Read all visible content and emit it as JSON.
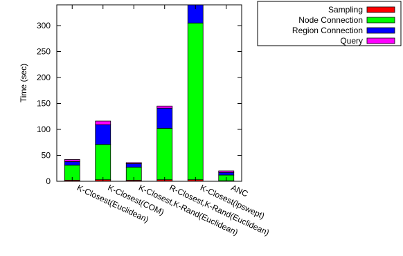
{
  "chart_data": {
    "type": "bar",
    "stacked": true,
    "title": "",
    "xlabel": "",
    "ylabel": "Time (sec)",
    "ylim": [
      0,
      340
    ],
    "yticks": [
      0,
      50,
      100,
      150,
      200,
      250,
      300
    ],
    "grid": false,
    "legend_position": "top-right, outside plot",
    "categories": [
      "K-Closest(Euclidean)",
      "K-Closest(COM)",
      "K-Closest,K-Rand(Euclidean)",
      "R-Closest,K-Rand(Euclidean)",
      "K-Closest(lpswept)",
      "ANC"
    ],
    "series": [
      {
        "name": "Sampling",
        "color": "#ff0000",
        "values": [
          2,
          3,
          2,
          3,
          3,
          1
        ]
      },
      {
        "name": "Node Connection",
        "color": "#00ff00",
        "values": [
          29,
          68,
          25,
          99,
          302,
          11
        ]
      },
      {
        "name": "Region Connection",
        "color": "#0000ff",
        "values": [
          7,
          38,
          7,
          39,
          35,
          5
        ]
      },
      {
        "name": "Query",
        "color": "#ff00ff",
        "values": [
          4,
          7,
          2,
          4,
          3,
          3
        ]
      }
    ]
  }
}
